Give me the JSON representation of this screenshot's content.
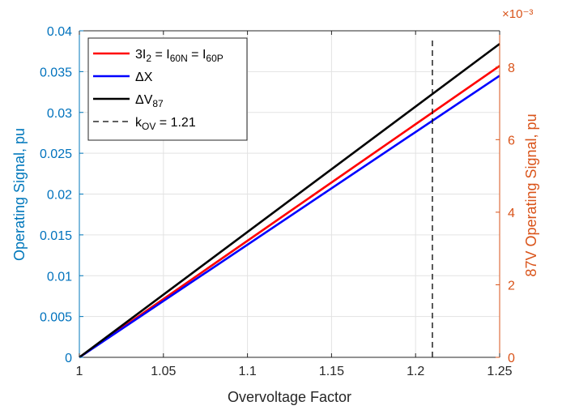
{
  "chart_data": {
    "type": "line",
    "xlabel": "Overvoltage Factor",
    "ylabel_left": "Operating Signal, pu",
    "ylabel_right": "87V Operating Signal, pu",
    "right_axis_exponent": "×10⁻³",
    "xlim": [
      1,
      1.25
    ],
    "ylim_left": [
      0,
      0.04
    ],
    "ylim_right": [
      0,
      0.009
    ],
    "x_ticks": [
      "1",
      "1.05",
      "1.1",
      "1.15",
      "1.2",
      "1.25"
    ],
    "x_tick_values": [
      1,
      1.05,
      1.1,
      1.15,
      1.2,
      1.25
    ],
    "y_left_ticks": [
      "0",
      "0.005",
      "0.01",
      "0.015",
      "0.02",
      "0.025",
      "0.03",
      "0.035",
      "0.04"
    ],
    "y_left_tick_values": [
      0,
      0.005,
      0.01,
      0.015,
      0.02,
      0.025,
      0.03,
      0.035,
      0.04
    ],
    "y_right_ticks": [
      "0",
      "2",
      "4",
      "6",
      "8"
    ],
    "y_right_tick_values": [
      0,
      2,
      4,
      6,
      8
    ],
    "grid": true,
    "legend_position": "top-left",
    "series": [
      {
        "label_parts": [
          "3I",
          "2",
          " = I",
          "60N",
          " = I",
          "60P"
        ],
        "color": "#FF0000",
        "axis": "left",
        "style": "solid",
        "x": [
          1,
          1.25
        ],
        "y": [
          0,
          0.0357
        ]
      },
      {
        "label_parts": [
          "ΔX"
        ],
        "color": "#0000FF",
        "axis": "left",
        "style": "solid",
        "x": [
          1,
          1.25
        ],
        "y": [
          0,
          0.0345
        ]
      },
      {
        "label_parts": [
          "ΔV",
          "87"
        ],
        "color": "#000000",
        "axis": "left",
        "style": "solid",
        "x": [
          1,
          1.25
        ],
        "y": [
          0,
          0.0384
        ]
      },
      {
        "label_parts": [
          "k",
          "OV",
          " = 1.21"
        ],
        "color": "#000000",
        "axis": "left",
        "style": "dashed",
        "x": [
          1.21,
          1.21
        ],
        "y": [
          0,
          0.039
        ]
      }
    ],
    "colors": {
      "left_axis": "#0077BB",
      "right_axis": "#D95319",
      "axis_text": "#262626",
      "grid": "#E3E3E3"
    }
  }
}
